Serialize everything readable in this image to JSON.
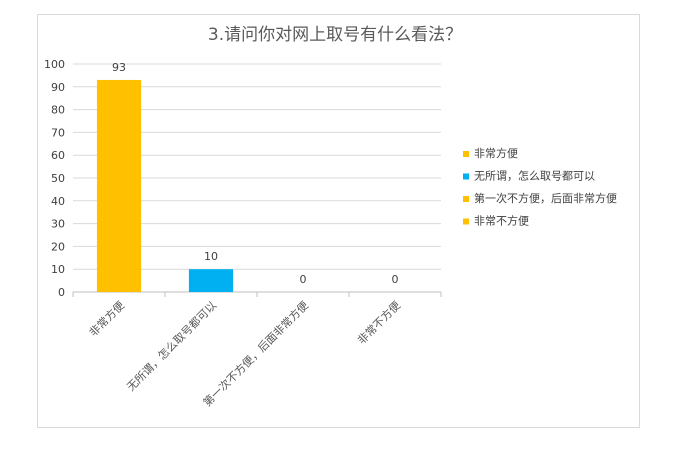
{
  "chart_data": {
    "type": "bar",
    "title": "3.请问你对网上取号有什么看法？",
    "categories": [
      "非常方便",
      "无所谓，怎么取号都可以",
      "第一次不方便，后面非常方便",
      "非常不方便"
    ],
    "values": [
      93,
      10,
      0,
      0
    ],
    "bar_colors": [
      "#FFC000",
      "#00B0F0",
      "#FFC000",
      "#FFC000"
    ],
    "ylim": [
      0,
      100
    ],
    "yticks": [
      0,
      10,
      20,
      30,
      40,
      50,
      60,
      70,
      80,
      90,
      100
    ],
    "grid": true,
    "legend_position": "right",
    "legend": [
      {
        "label": "非常方便",
        "color": "#FFC000"
      },
      {
        "label": "无所谓，怎么取号都可以",
        "color": "#00B0F0"
      },
      {
        "label": "第一次不方便，后面非常方便",
        "color": "#FFC000"
      },
      {
        "label": "非常不方便",
        "color": "#FFC000"
      }
    ]
  }
}
